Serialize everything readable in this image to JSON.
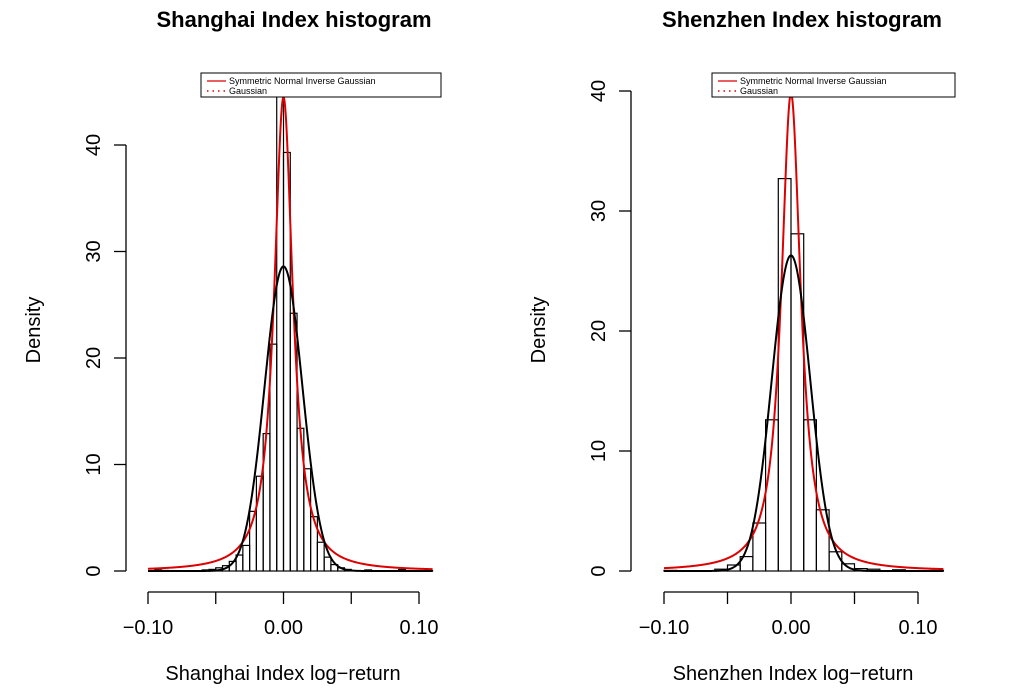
{
  "chart_data": [
    {
      "type": "bar",
      "title": "Shanghai Index histogram",
      "xlabel": "Shanghai Index log−return",
      "ylabel": "Density",
      "xlim": [
        -0.1,
        0.11
      ],
      "ylim": [
        0,
        45
      ],
      "xticks": [
        -0.1,
        -0.05,
        0.0,
        0.05,
        0.1
      ],
      "xtick_labels": [
        "−0.10",
        "0.00",
        "0.10"
      ],
      "xtick_label_values": [
        -0.1,
        0.0,
        0.1
      ],
      "yticks": [
        0,
        10,
        20,
        30,
        40
      ],
      "ytick_labels": [
        "0",
        "10",
        "20",
        "30",
        "40"
      ],
      "bin_width": 0.005,
      "bins": [
        {
          "x0": -0.095,
          "x1": -0.09,
          "density": 0.1
        },
        {
          "x0": -0.09,
          "x1": -0.085,
          "density": 0.05
        },
        {
          "x0": -0.06,
          "x1": -0.055,
          "density": 0.1
        },
        {
          "x0": -0.055,
          "x1": -0.05,
          "density": 0.15
        },
        {
          "x0": -0.05,
          "x1": -0.045,
          "density": 0.3
        },
        {
          "x0": -0.045,
          "x1": -0.04,
          "density": 0.5
        },
        {
          "x0": -0.04,
          "x1": -0.035,
          "density": 0.9
        },
        {
          "x0": -0.035,
          "x1": -0.03,
          "density": 1.5
        },
        {
          "x0": -0.03,
          "x1": -0.025,
          "density": 2.4
        },
        {
          "x0": -0.025,
          "x1": -0.02,
          "density": 5.6
        },
        {
          "x0": -0.02,
          "x1": -0.015,
          "density": 8.9
        },
        {
          "x0": -0.015,
          "x1": -0.01,
          "density": 12.9
        },
        {
          "x0": -0.01,
          "x1": -0.005,
          "density": 21.3
        },
        {
          "x0": -0.005,
          "x1": 0.0,
          "density": 45.2
        },
        {
          "x0": 0.0,
          "x1": 0.005,
          "density": 39.3
        },
        {
          "x0": 0.005,
          "x1": 0.01,
          "density": 24.2
        },
        {
          "x0": 0.01,
          "x1": 0.015,
          "density": 13.4
        },
        {
          "x0": 0.015,
          "x1": 0.02,
          "density": 9.6
        },
        {
          "x0": 0.02,
          "x1": 0.025,
          "density": 5.1
        },
        {
          "x0": 0.025,
          "x1": 0.03,
          "density": 2.7
        },
        {
          "x0": 0.03,
          "x1": 0.035,
          "density": 1.3
        },
        {
          "x0": 0.035,
          "x1": 0.04,
          "density": 0.6
        },
        {
          "x0": 0.04,
          "x1": 0.045,
          "density": 0.3
        },
        {
          "x0": 0.045,
          "x1": 0.05,
          "density": 0.15
        },
        {
          "x0": 0.06,
          "x1": 0.065,
          "density": 0.1
        },
        {
          "x0": 0.085,
          "x1": 0.09,
          "density": 0.15
        },
        {
          "x0": 0.105,
          "x1": 0.11,
          "density": 0.05
        }
      ],
      "series": [
        {
          "name": "Symmetric Normal Inverse Gaussian",
          "kind": "nig",
          "color": "#dd0000",
          "peak": 44.5,
          "scale": 0.0088
        },
        {
          "name": "Gaussian",
          "kind": "gaussian",
          "color": "#000000",
          "peak": 28.6,
          "sd": 0.01395
        }
      ],
      "legend": {
        "placement": "top-right",
        "entries": [
          "Symmetric Normal Inverse Gaussian",
          "Gaussian"
        ]
      }
    },
    {
      "type": "bar",
      "title": "Shenzhen Index histogram",
      "xlabel": "Shenzhen Index log−return",
      "ylabel": "Density",
      "xlim": [
        -0.1,
        0.12
      ],
      "ylim": [
        0,
        40
      ],
      "xticks": [
        -0.1,
        -0.05,
        0.0,
        0.05,
        0.1
      ],
      "xtick_labels": [
        "−0.10",
        "0.00",
        "0.10"
      ],
      "xtick_label_values": [
        -0.1,
        0.0,
        0.1
      ],
      "yticks": [
        0,
        10,
        20,
        30,
        40
      ],
      "ytick_labels": [
        "0",
        "10",
        "20",
        "30",
        "40"
      ],
      "bin_width": 0.01,
      "bins": [
        {
          "x0": -0.1,
          "x1": -0.09,
          "density": 0.05
        },
        {
          "x0": -0.06,
          "x1": -0.05,
          "density": 0.15
        },
        {
          "x0": -0.05,
          "x1": -0.04,
          "density": 0.5
        },
        {
          "x0": -0.04,
          "x1": -0.03,
          "density": 1.2
        },
        {
          "x0": -0.03,
          "x1": -0.02,
          "density": 4.0
        },
        {
          "x0": -0.02,
          "x1": -0.01,
          "density": 12.6
        },
        {
          "x0": -0.01,
          "x1": 0.0,
          "density": 32.7
        },
        {
          "x0": 0.0,
          "x1": 0.01,
          "density": 28.1
        },
        {
          "x0": 0.01,
          "x1": 0.02,
          "density": 12.6
        },
        {
          "x0": 0.02,
          "x1": 0.03,
          "density": 5.1
        },
        {
          "x0": 0.03,
          "x1": 0.04,
          "density": 1.6
        },
        {
          "x0": 0.04,
          "x1": 0.05,
          "density": 0.6
        },
        {
          "x0": 0.05,
          "x1": 0.06,
          "density": 0.2
        },
        {
          "x0": 0.06,
          "x1": 0.07,
          "density": 0.15
        },
        {
          "x0": 0.08,
          "x1": 0.09,
          "density": 0.1
        },
        {
          "x0": 0.11,
          "x1": 0.12,
          "density": 0.05
        }
      ],
      "series": [
        {
          "name": "Symmetric Normal Inverse Gaussian",
          "kind": "nig",
          "color": "#dd0000",
          "peak": 39.8,
          "scale": 0.0098
        },
        {
          "name": "Gaussian",
          "kind": "gaussian",
          "color": "#000000",
          "peak": 26.3,
          "sd": 0.01515
        }
      ],
      "legend": {
        "placement": "top-right",
        "entries": [
          "Symmetric Normal Inverse Gaussian",
          "Gaussian"
        ]
      }
    }
  ]
}
